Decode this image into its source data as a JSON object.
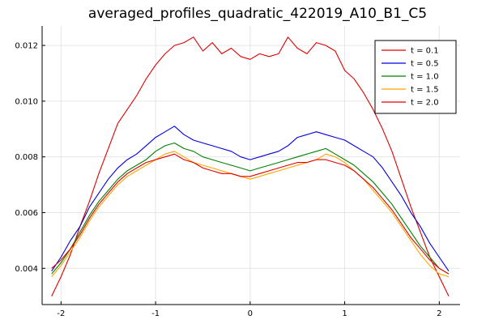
{
  "chart_data": {
    "type": "line",
    "title": "averaged_profiles_quadratic_422019_A10_B1_C5",
    "xlabel": "",
    "ylabel": "",
    "xlim": [
      -2.2,
      2.22
    ],
    "ylim": [
      0.0027,
      0.0127
    ],
    "grid": true,
    "legend_position": "top-right",
    "x_ticks": [
      -2,
      -1,
      0,
      1,
      2
    ],
    "x_tick_labels": [
      "-2",
      "-1",
      "0",
      "1",
      "2"
    ],
    "y_ticks": [
      0.004,
      0.006,
      0.008,
      0.01,
      0.012
    ],
    "y_tick_labels": [
      "0.004",
      "0.006",
      "0.008",
      "0.010",
      "0.012"
    ],
    "series": [
      {
        "name": "t = 0.1",
        "color": "#e00000",
        "x": [
          -2.1,
          -2.0,
          -1.9,
          -1.8,
          -1.7,
          -1.6,
          -1.5,
          -1.4,
          -1.3,
          -1.2,
          -1.1,
          -1.0,
          -0.9,
          -0.8,
          -0.7,
          -0.6,
          -0.5,
          -0.4,
          -0.3,
          -0.2,
          -0.1,
          0.0,
          0.1,
          0.2,
          0.3,
          0.4,
          0.5,
          0.6,
          0.7,
          0.8,
          0.9,
          1.0,
          1.1,
          1.2,
          1.3,
          1.4,
          1.5,
          1.6,
          1.7,
          1.8,
          1.9,
          2.0,
          2.1
        ],
        "y": [
          0.003,
          0.0037,
          0.0045,
          0.0055,
          0.0064,
          0.0074,
          0.0083,
          0.0092,
          0.0097,
          0.0102,
          0.0108,
          0.0113,
          0.0117,
          0.012,
          0.0121,
          0.0123,
          0.0118,
          0.0121,
          0.0117,
          0.0119,
          0.0116,
          0.0115,
          0.0117,
          0.0116,
          0.0117,
          0.0123,
          0.0119,
          0.0117,
          0.0121,
          0.012,
          0.0118,
          0.0111,
          0.0108,
          0.0103,
          0.0097,
          0.009,
          0.0082,
          0.0072,
          0.0062,
          0.0053,
          0.0044,
          0.0037,
          0.003
        ]
      },
      {
        "name": "t = 0.5",
        "color": "#0000e0",
        "x": [
          -2.1,
          -2.0,
          -1.9,
          -1.8,
          -1.7,
          -1.6,
          -1.5,
          -1.4,
          -1.3,
          -1.2,
          -1.1,
          -1.0,
          -0.9,
          -0.8,
          -0.7,
          -0.6,
          -0.5,
          -0.4,
          -0.3,
          -0.2,
          -0.1,
          0.0,
          0.1,
          0.2,
          0.3,
          0.4,
          0.5,
          0.6,
          0.7,
          0.8,
          0.9,
          1.0,
          1.1,
          1.2,
          1.3,
          1.4,
          1.5,
          1.6,
          1.7,
          1.8,
          1.9,
          2.0,
          2.1
        ],
        "y": [
          0.0039,
          0.0044,
          0.005,
          0.0055,
          0.0062,
          0.0067,
          0.0072,
          0.0076,
          0.0079,
          0.0081,
          0.0084,
          0.0087,
          0.0089,
          0.0091,
          0.0088,
          0.0086,
          0.0085,
          0.0084,
          0.0083,
          0.0082,
          0.008,
          0.0079,
          0.008,
          0.0081,
          0.0082,
          0.0084,
          0.0087,
          0.0088,
          0.0089,
          0.0088,
          0.0087,
          0.0086,
          0.0084,
          0.0082,
          0.008,
          0.0076,
          0.0071,
          0.0066,
          0.006,
          0.0055,
          0.0049,
          0.0044,
          0.0039
        ]
      },
      {
        "name": "t = 1.0",
        "color": "#008000",
        "x": [
          -2.1,
          -2.0,
          -1.9,
          -1.8,
          -1.7,
          -1.6,
          -1.5,
          -1.4,
          -1.3,
          -1.2,
          -1.1,
          -1.0,
          -0.9,
          -0.8,
          -0.7,
          -0.6,
          -0.5,
          -0.4,
          -0.3,
          -0.2,
          -0.1,
          0.0,
          0.1,
          0.2,
          0.3,
          0.4,
          0.5,
          0.6,
          0.7,
          0.8,
          0.9,
          1.0,
          1.1,
          1.2,
          1.3,
          1.4,
          1.5,
          1.6,
          1.7,
          1.8,
          1.9,
          2.0,
          2.1
        ],
        "y": [
          0.0038,
          0.0042,
          0.0047,
          0.0053,
          0.0059,
          0.0064,
          0.0068,
          0.0072,
          0.0075,
          0.0077,
          0.0079,
          0.0082,
          0.0084,
          0.0085,
          0.0083,
          0.0082,
          0.008,
          0.0079,
          0.0078,
          0.0077,
          0.0076,
          0.0075,
          0.0076,
          0.0077,
          0.0078,
          0.0079,
          0.008,
          0.0081,
          0.0082,
          0.0083,
          0.0081,
          0.0079,
          0.0077,
          0.0074,
          0.0071,
          0.0067,
          0.0063,
          0.0058,
          0.0053,
          0.0048,
          0.0044,
          0.004,
          0.0038
        ]
      },
      {
        "name": "t = 1.5",
        "color": "#ffa500",
        "x": [
          -2.1,
          -2.0,
          -1.9,
          -1.8,
          -1.7,
          -1.6,
          -1.5,
          -1.4,
          -1.3,
          -1.2,
          -1.1,
          -1.0,
          -0.9,
          -0.8,
          -0.7,
          -0.6,
          -0.5,
          -0.4,
          -0.3,
          -0.2,
          -0.1,
          0.0,
          0.1,
          0.2,
          0.3,
          0.4,
          0.5,
          0.6,
          0.7,
          0.8,
          0.9,
          1.0,
          1.1,
          1.2,
          1.3,
          1.4,
          1.5,
          1.6,
          1.7,
          1.8,
          1.9,
          2.0,
          2.1
        ],
        "y": [
          0.0037,
          0.0041,
          0.0046,
          0.0051,
          0.0057,
          0.0062,
          0.0066,
          0.007,
          0.0073,
          0.0075,
          0.0077,
          0.0079,
          0.0081,
          0.0082,
          0.008,
          0.0078,
          0.0077,
          0.0076,
          0.0075,
          0.0074,
          0.0073,
          0.0072,
          0.0073,
          0.0074,
          0.0075,
          0.0076,
          0.0077,
          0.0078,
          0.0079,
          0.0081,
          0.008,
          0.0078,
          0.0075,
          0.0072,
          0.0068,
          0.0064,
          0.006,
          0.0055,
          0.005,
          0.0045,
          0.0041,
          0.0038,
          0.0037
        ]
      },
      {
        "name": "t = 2.0",
        "color": "#e00000",
        "x": [
          -2.1,
          -2.0,
          -1.9,
          -1.8,
          -1.7,
          -1.6,
          -1.5,
          -1.4,
          -1.3,
          -1.2,
          -1.1,
          -1.0,
          -0.9,
          -0.8,
          -0.7,
          -0.6,
          -0.5,
          -0.4,
          -0.3,
          -0.2,
          -0.1,
          0.0,
          0.1,
          0.2,
          0.3,
          0.4,
          0.5,
          0.6,
          0.7,
          0.8,
          0.9,
          1.0,
          1.1,
          1.2,
          1.3,
          1.4,
          1.5,
          1.6,
          1.7,
          1.8,
          1.9,
          2.0,
          2.1
        ],
        "y": [
          0.004,
          0.0043,
          0.0047,
          0.0052,
          0.0058,
          0.0063,
          0.0067,
          0.0071,
          0.0074,
          0.0076,
          0.0078,
          0.0079,
          0.008,
          0.0081,
          0.0079,
          0.0078,
          0.0076,
          0.0075,
          0.0074,
          0.0074,
          0.0073,
          0.0073,
          0.0074,
          0.0075,
          0.0076,
          0.0077,
          0.0078,
          0.0078,
          0.0079,
          0.0079,
          0.0078,
          0.0077,
          0.0075,
          0.0072,
          0.0069,
          0.0065,
          0.0061,
          0.0056,
          0.0051,
          0.0047,
          0.0043,
          0.004,
          0.0038
        ]
      }
    ]
  }
}
